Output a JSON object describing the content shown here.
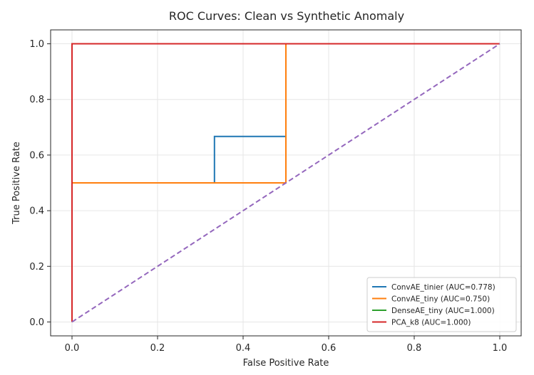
{
  "chart_data": {
    "type": "line",
    "title": "ROC Curves: Clean vs Synthetic Anomaly",
    "xlabel": "False Positive Rate",
    "ylabel": "True Positive Rate",
    "xlim": [
      -0.05,
      1.05
    ],
    "ylim": [
      -0.05,
      1.05
    ],
    "xticks": [
      "0.0",
      "0.2",
      "0.4",
      "0.6",
      "0.8",
      "1.0"
    ],
    "yticks": [
      "0.0",
      "0.2",
      "0.4",
      "0.6",
      "0.8",
      "1.0"
    ],
    "grid": true,
    "legend_position": "lower-right",
    "series": [
      {
        "name": "ConvAE_tinier (AUC=0.778)",
        "color": "#1f77b4",
        "x": [
          0.0,
          0.0,
          0.333,
          0.333,
          0.5,
          0.5,
          1.0
        ],
        "y": [
          0.0,
          0.5,
          0.5,
          0.667,
          0.667,
          1.0,
          1.0
        ]
      },
      {
        "name": "ConvAE_tiny (AUC=0.750)",
        "color": "#ff7f0e",
        "x": [
          0.0,
          0.0,
          0.5,
          0.5,
          1.0
        ],
        "y": [
          0.0,
          0.5,
          0.5,
          1.0,
          1.0
        ]
      },
      {
        "name": "DenseAE_tiny (AUC=1.000)",
        "color": "#2ca02c",
        "x": [
          0.0,
          0.0,
          1.0
        ],
        "y": [
          0.0,
          1.0,
          1.0
        ]
      },
      {
        "name": "PCA_k8 (AUC=1.000)",
        "color": "#d62728",
        "x": [
          0.0,
          0.0,
          1.0
        ],
        "y": [
          0.0,
          1.0,
          1.0
        ]
      }
    ],
    "reference_line": {
      "color": "#9467bd",
      "style": "dashed",
      "x": [
        0,
        1
      ],
      "y": [
        0,
        1
      ]
    }
  }
}
